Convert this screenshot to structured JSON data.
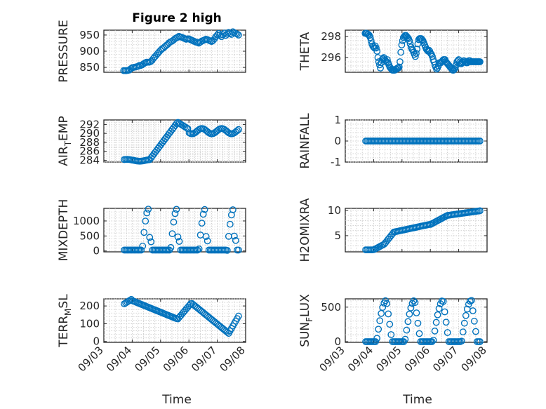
{
  "figure": {
    "title": "Figure 2 high",
    "marker_color": "#0072BD",
    "x_axis_label": "Time"
  },
  "chart_data": [
    {
      "type": "scatter",
      "panel": "PRESSURE",
      "ylabel": "PRESSURE",
      "ylabel_sub": "",
      "title": "Figure 2 high",
      "xlim": [
        3.0,
        8.0
      ],
      "ylim": [
        835,
        965
      ],
      "yticks": [
        850,
        900,
        950
      ],
      "ytick_labels": [
        "850",
        "900",
        "950"
      ],
      "xticks": [
        3,
        4,
        5,
        6,
        7,
        8
      ],
      "xtick_labels": [],
      "x": [
        3.7,
        3.75,
        3.8,
        3.85,
        3.9,
        3.95,
        4.0,
        4.05,
        4.1,
        4.15,
        4.2,
        4.25,
        4.3,
        4.35,
        4.4,
        4.45,
        4.5,
        4.55,
        4.6,
        4.65,
        4.7,
        4.75,
        4.8,
        4.85,
        4.9,
        4.95,
        5.0,
        5.05,
        5.1,
        5.15,
        5.2,
        5.25,
        5.3,
        5.35,
        5.4,
        5.45,
        5.5,
        5.55,
        5.6,
        5.65,
        5.7,
        5.75,
        5.8,
        5.85,
        5.9,
        5.95,
        6.0,
        6.05,
        6.1,
        6.15,
        6.2,
        6.25,
        6.3,
        6.35,
        6.4,
        6.45,
        6.5,
        6.55,
        6.6,
        6.65,
        6.7,
        6.75,
        6.8,
        6.85,
        6.9,
        6.95,
        7.0,
        7.05,
        7.1,
        7.15,
        7.2,
        7.25,
        7.3,
        7.35,
        7.4,
        7.45,
        7.5,
        7.55,
        7.6,
        7.65,
        7.7,
        7.75
      ],
      "y": [
        840,
        840,
        840,
        841,
        842,
        846,
        849,
        850,
        851,
        852,
        853,
        856,
        856,
        858,
        861,
        864,
        866,
        866,
        866,
        868,
        872,
        878,
        883,
        888,
        893,
        898,
        903,
        907,
        910,
        914,
        918,
        921,
        926,
        929,
        931,
        934,
        938,
        941,
        943,
        946,
        944,
        943,
        941,
        939,
        937,
        938,
        938,
        936,
        934,
        932,
        930,
        928,
        927,
        925,
        928,
        931,
        933,
        935,
        937,
        936,
        934,
        932,
        930,
        933,
        938,
        945,
        950,
        955,
        950,
        945,
        951,
        956,
        949,
        953,
        958,
        955,
        952,
        960,
        957,
        955,
        953,
        950
      ]
    },
    {
      "type": "scatter",
      "panel": "THETA",
      "ylabel": "THETA",
      "ylabel_sub": "",
      "title": "",
      "xlim": [
        3.0,
        8.0
      ],
      "ylim": [
        294.6,
        298.6
      ],
      "yticks": [
        296,
        298
      ],
      "ytick_labels": [
        "296",
        "298"
      ],
      "xticks": [
        3,
        4,
        5,
        6,
        7,
        8
      ],
      "xtick_labels": [],
      "x": [
        3.7,
        3.73,
        3.76,
        3.79,
        3.82,
        3.85,
        3.88,
        3.91,
        3.94,
        3.97,
        4.0,
        4.03,
        4.06,
        4.09,
        4.12,
        4.15,
        4.18,
        4.21,
        4.24,
        4.27,
        4.3,
        4.33,
        4.36,
        4.39,
        4.42,
        4.45,
        4.48,
        4.51,
        4.54,
        4.57,
        4.6,
        4.63,
        4.66,
        4.69,
        4.72,
        4.75,
        4.78,
        4.81,
        4.84,
        4.87,
        4.9,
        4.93,
        4.96,
        4.99,
        5.02,
        5.05,
        5.08,
        5.11,
        5.14,
        5.17,
        5.2,
        5.23,
        5.26,
        5.29,
        5.32,
        5.35,
        5.38,
        5.41,
        5.44,
        5.47,
        5.5,
        5.53,
        5.56,
        5.59,
        5.62,
        5.65,
        5.68,
        5.71,
        5.74,
        5.77,
        5.8,
        5.83,
        5.86,
        5.89,
        5.92,
        5.95,
        5.98,
        6.01,
        6.04,
        6.07,
        6.1,
        6.13,
        6.16,
        6.19,
        6.22,
        6.25,
        6.28,
        6.31,
        6.34,
        6.37,
        6.4,
        6.43,
        6.46,
        6.49,
        6.52,
        6.55,
        6.58,
        6.61,
        6.64,
        6.67,
        6.7,
        6.73,
        6.76,
        6.79,
        6.82,
        6.85,
        6.88,
        6.91,
        6.94,
        6.97,
        7.0,
        7.03,
        7.06,
        7.09,
        7.12,
        7.15,
        7.18,
        7.21,
        7.24,
        7.27,
        7.3,
        7.33,
        7.36,
        7.39,
        7.42,
        7.45,
        7.48,
        7.51,
        7.54,
        7.57,
        7.6,
        7.63,
        7.66,
        7.69,
        7.72,
        7.75
      ],
      "y": [
        298.3,
        298.3,
        298.3,
        298.2,
        298.2,
        298.1,
        297.9,
        297.6,
        297.3,
        297.1,
        297.0,
        296.9,
        297.1,
        296.9,
        296.6,
        296.0,
        295.6,
        295.3,
        295.0,
        295.5,
        295.8,
        295.9,
        296.0,
        295.8,
        295.7,
        295.6,
        295.8,
        295.5,
        295.3,
        295.1,
        295.0,
        294.9,
        294.8,
        294.8,
        294.8,
        294.8,
        294.9,
        294.9,
        295.0,
        295.0,
        295.1,
        295.6,
        296.5,
        297.2,
        297.6,
        297.9,
        298.0,
        298.1,
        298.1,
        298.0,
        297.9,
        297.8,
        297.6,
        297.3,
        297.0,
        296.8,
        296.7,
        296.5,
        296.3,
        296.1,
        296.4,
        296.8,
        297.3,
        297.7,
        297.8,
        297.8,
        297.8,
        297.7,
        297.6,
        297.4,
        297.2,
        297.0,
        296.8,
        296.7,
        296.6,
        296.7,
        296.6,
        296.4,
        296.3,
        296.1,
        295.8,
        295.6,
        295.3,
        295.1,
        294.9,
        295.0,
        295.2,
        295.5,
        295.5,
        295.5,
        295.6,
        295.7,
        295.8,
        295.8,
        295.8,
        295.6,
        295.5,
        295.4,
        295.3,
        295.2,
        295.1,
        295.0,
        294.9,
        294.8,
        294.8,
        294.9,
        295.0,
        295.3,
        295.6,
        295.7,
        295.8,
        295.5,
        295.4,
        295.4,
        295.5,
        295.6,
        295.7,
        295.6,
        295.6,
        295.5,
        295.5,
        295.6,
        295.7,
        295.7,
        295.6,
        295.6,
        295.6,
        295.6,
        295.6,
        295.6,
        295.6,
        295.6,
        295.6,
        295.6,
        295.6,
        295.6
      ],
      "note_x_scale": "THETA panel x values here span early-to-late times within the panel frame"
    }
  ],
  "xtick_labels_bottom": [
    "09/03",
    "09/04",
    "09/05",
    "09/06",
    "09/07",
    "09/08"
  ]
}
